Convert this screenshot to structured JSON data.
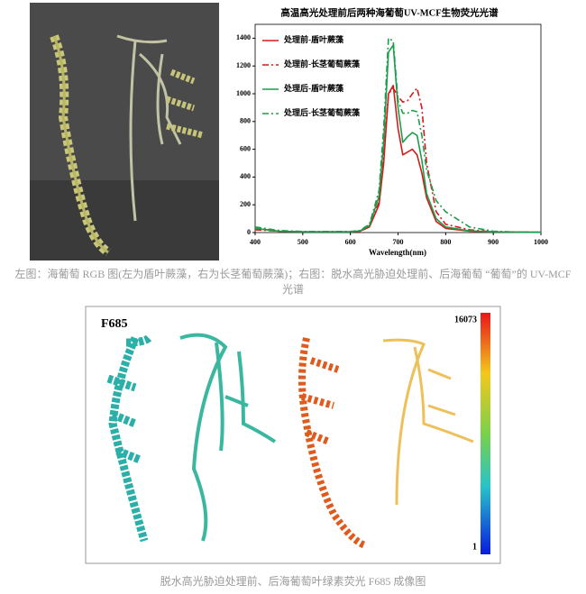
{
  "chart_data": {
    "type": "line",
    "title": "高温高光处理前后两种海葡萄UV-MCF生物荧光光谱",
    "x_label": "Wavelength(nm)",
    "x": [
      400,
      450,
      500,
      550,
      600,
      620,
      640,
      660,
      670,
      680,
      690,
      700,
      710,
      720,
      730,
      740,
      750,
      760,
      780,
      800,
      850,
      900,
      950,
      1000
    ],
    "xlim": [
      400,
      1000
    ],
    "xticks": [
      400,
      500,
      600,
      700,
      800,
      900,
      1000
    ],
    "ylim": [
      0,
      1500
    ],
    "yticks": [
      0,
      200,
      400,
      600,
      800,
      1000,
      1200,
      1400
    ],
    "legend": "upper-left",
    "series": [
      {
        "name": "处理前-盾叶蕨藻",
        "color": "#d7191c",
        "style": "solid",
        "values": [
          30,
          10,
          5,
          5,
          5,
          10,
          40,
          200,
          500,
          1000,
          1060,
          750,
          560,
          580,
          600,
          560,
          430,
          250,
          80,
          30,
          10,
          5,
          3,
          2
        ]
      },
      {
        "name": "处理前-长茎葡萄蕨藻",
        "color": "#d7191c",
        "style": "dashdot",
        "values": [
          20,
          10,
          5,
          5,
          5,
          10,
          40,
          220,
          550,
          1000,
          1040,
          980,
          940,
          950,
          1000,
          1040,
          900,
          500,
          150,
          60,
          20,
          5,
          3,
          2
        ]
      },
      {
        "name": "处理后-盾叶蕨藻",
        "color": "#1a9e4a",
        "style": "solid",
        "values": [
          30,
          10,
          5,
          5,
          5,
          12,
          50,
          260,
          650,
          1300,
          1350,
          900,
          650,
          690,
          720,
          700,
          520,
          280,
          100,
          40,
          12,
          5,
          3,
          2
        ]
      },
      {
        "name": "处理后-长茎葡萄蕨藻",
        "color": "#1a9e4a",
        "style": "dashdot",
        "values": [
          40,
          15,
          8,
          8,
          8,
          15,
          60,
          300,
          750,
          1400,
          1380,
          950,
          860,
          860,
          880,
          870,
          700,
          450,
          230,
          150,
          40,
          10,
          3,
          2
        ]
      }
    ]
  },
  "caption_top": "左图：海葡萄 RGB 图(左为盾叶蕨藻，右为长茎葡萄蕨藻)；右图：脱水高光胁迫处理前、后海葡萄 “葡萄”的 UV-MCF 光谱",
  "image": {
    "title": "F685",
    "colorbar_lim": [
      1,
      16073
    ]
  },
  "caption_bottom": "脱水高光胁迫处理前、后海葡萄叶绿素荧光 F685 成像图"
}
